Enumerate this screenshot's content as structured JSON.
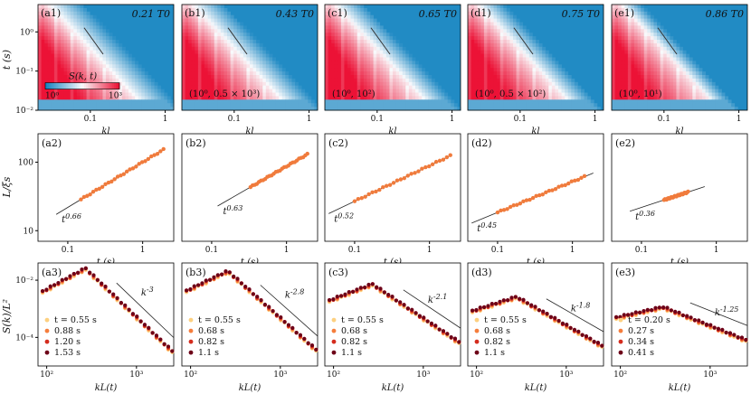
{
  "figure": {
    "ylabels": {
      "row1": "t (s)",
      "row2": "L/ξs",
      "row3": "S(k)/L²"
    }
  },
  "chart_data": [
    {
      "type": "heatmap",
      "panel": "a1",
      "label": "(a1)",
      "temperature": "0.21 T0",
      "xlabel": "kl",
      "ylabel": "t (s)",
      "xscale": "log",
      "yscale": "log",
      "xlim": [
        0.02,
        1.3
      ],
      "ylim": [
        0.01,
        5
      ],
      "xticks": [
        "0.1",
        "1"
      ],
      "yticks": [
        "10⁻²",
        "10⁻¹",
        "10⁰"
      ],
      "colorbar": {
        "label": "S(k, t)",
        "ticks": [
          "10⁰",
          "10³"
        ],
        "range": [
          1,
          1000
        ]
      },
      "range_note": "",
      "slope_guide": true
    },
    {
      "type": "heatmap",
      "panel": "b1",
      "label": "(b1)",
      "temperature": "0.43 T0",
      "xlabel": "kl",
      "xscale": "log",
      "yscale": "log",
      "xlim": [
        0.02,
        1.3
      ],
      "ylim": [
        0.01,
        5
      ],
      "xticks": [
        "0.1",
        "1"
      ],
      "range_note": "(10⁰, 0.5 × 10³)",
      "slope_guide": true
    },
    {
      "type": "heatmap",
      "panel": "c1",
      "label": "(c1)",
      "temperature": "0.65 T0",
      "xlabel": "kl",
      "xscale": "log",
      "yscale": "log",
      "xlim": [
        0.02,
        1.3
      ],
      "ylim": [
        0.01,
        5
      ],
      "xticks": [
        "0.1",
        "1"
      ],
      "range_note": "(10⁰, 10²)",
      "slope_guide": true
    },
    {
      "type": "heatmap",
      "panel": "d1",
      "label": "(d1)",
      "temperature": "0.75 T0",
      "xlabel": "kl",
      "xscale": "log",
      "yscale": "log",
      "xlim": [
        0.02,
        1.3
      ],
      "ylim": [
        0.01,
        5
      ],
      "xticks": [
        "0.1",
        "1"
      ],
      "range_note": "(10⁰, 0.5 × 10²)",
      "slope_guide": true
    },
    {
      "type": "heatmap",
      "panel": "e1",
      "label": "(e1)",
      "temperature": "0.86 T0",
      "xlabel": "kl",
      "xscale": "log",
      "yscale": "log",
      "xlim": [
        0.02,
        1.3
      ],
      "ylim": [
        0.01,
        5
      ],
      "xticks": [
        "0.1",
        "1"
      ],
      "range_note": "(10⁰, 10¹)",
      "slope_guide": true
    },
    {
      "type": "scatter",
      "panel": "a2",
      "label": "(a2)",
      "xlabel": "t (s)",
      "ylabel": "L/ξs",
      "xscale": "log",
      "yscale": "log",
      "xlim": [
        0.04,
        2.6
      ],
      "ylim": [
        7,
        260
      ],
      "xticks": [
        "0.1",
        "1"
      ],
      "yticks": [
        "10",
        "100"
      ],
      "data_t_range": [
        0.15,
        1.9
      ],
      "L_at_t1": 100,
      "exponent": 0.66,
      "fit_t_range": [
        0.07,
        1.9
      ],
      "fit_label": "t^0.66"
    },
    {
      "type": "scatter",
      "panel": "b2",
      "label": "(b2)",
      "xlabel": "t (s)",
      "xscale": "log",
      "yscale": "log",
      "xlim": [
        0.04,
        2.6
      ],
      "ylim": [
        7,
        260
      ],
      "xticks": [
        "0.1",
        "1"
      ],
      "data_t_range": [
        0.33,
        1.9
      ],
      "L_at_t1": 87,
      "exponent": 0.63,
      "fit_t_range": [
        0.12,
        1.9
      ],
      "fit_label": "t^0.63"
    },
    {
      "type": "scatter",
      "panel": "c2",
      "label": "(c2)",
      "xlabel": "t (s)",
      "xscale": "log",
      "yscale": "log",
      "xlim": [
        0.04,
        2.6
      ],
      "ylim": [
        7,
        260
      ],
      "xticks": [
        "0.1",
        "1"
      ],
      "data_t_range": [
        0.1,
        1.9
      ],
      "L_at_t1": 89,
      "exponent": 0.52,
      "fit_t_range": [
        0.045,
        1.9
      ],
      "fit_label": "t^0.52"
    },
    {
      "type": "scatter",
      "panel": "d2",
      "label": "(d2)",
      "xlabel": "t (s)",
      "xscale": "log",
      "yscale": "log",
      "xlim": [
        0.04,
        2.6
      ],
      "ylim": [
        7,
        260
      ],
      "xticks": [
        "0.1",
        "1"
      ],
      "data_t_range": [
        0.1,
        1.45
      ],
      "L_at_t1": 52,
      "exponent": 0.45,
      "fit_t_range": [
        0.045,
        1.9
      ],
      "fit_label": "t^0.45"
    },
    {
      "type": "scatter",
      "panel": "e2",
      "label": "(e2)",
      "xlabel": "t (s)",
      "xscale": "log",
      "yscale": "log",
      "xlim": [
        0.04,
        2.6
      ],
      "ylim": [
        7,
        260
      ],
      "xticks": [
        "0.1",
        "1"
      ],
      "data_t_range": [
        0.2,
        0.42
      ],
      "L_at_t1": 50,
      "exponent": 0.36,
      "fit_t_range": [
        0.07,
        0.7
      ],
      "fit_label": "t^0.36"
    },
    {
      "type": "scatter",
      "panel": "a3",
      "label": "(a3)",
      "xlabel": "kL(t)",
      "ylabel": "S(k)/L²",
      "xscale": "log",
      "yscale": "log",
      "xlim": [
        80,
        2600
      ],
      "ylim": [
        1e-05,
        0.04
      ],
      "xticks": [
        "10²",
        "10³"
      ],
      "yticks": [
        "10⁻⁴",
        "10⁻²"
      ],
      "peak": {
        "x": 270,
        "y": 0.025
      },
      "tail_exponent": 3,
      "low_slope": 1.7,
      "slope_label": "k^-3",
      "slope_line_x": [
        600,
        2600
      ],
      "series": [
        {
          "name": "t = 0.55 s",
          "color": "#fdd080"
        },
        {
          "name": "0.88 s",
          "color": "#f57d3c"
        },
        {
          "name": "1.20 s",
          "color": "#d42c1e"
        },
        {
          "name": "1.53 s",
          "color": "#6d0018"
        }
      ]
    },
    {
      "type": "scatter",
      "panel": "b3",
      "label": "(b3)",
      "xlabel": "kL(t)",
      "xscale": "log",
      "yscale": "log",
      "xlim": [
        80,
        2600
      ],
      "ylim": [
        1e-05,
        0.04
      ],
      "xticks": [
        "10²",
        "10³"
      ],
      "peak": {
        "x": 260,
        "y": 0.02
      },
      "tail_exponent": 2.8,
      "low_slope": 1.5,
      "slope_label": "k^-2.8",
      "slope_line_x": [
        600,
        2600
      ],
      "series": [
        {
          "name": "t = 0.55 s",
          "color": "#fdd080"
        },
        {
          "name": "0.68 s",
          "color": "#f57d3c"
        },
        {
          "name": "0.82 s",
          "color": "#d42c1e"
        },
        {
          "name": "1.1 s",
          "color": "#6d0018"
        }
      ]
    },
    {
      "type": "scatter",
      "panel": "c3",
      "label": "(c3)",
      "xlabel": "kL(t)",
      "xscale": "log",
      "yscale": "log",
      "xlim": [
        80,
        2600
      ],
      "ylim": [
        1e-05,
        0.04
      ],
      "xticks": [
        "10²",
        "10³"
      ],
      "peak": {
        "x": 270,
        "y": 0.007
      },
      "tail_exponent": 2.1,
      "low_slope": 1.2,
      "slope_label": "k^-2.1",
      "slope_line_x": [
        600,
        2600
      ],
      "series": [
        {
          "name": "t = 0.55 s",
          "color": "#fdd080"
        },
        {
          "name": "0.68 s",
          "color": "#f57d3c"
        },
        {
          "name": "0.82 s",
          "color": "#d42c1e"
        },
        {
          "name": "1.1 s",
          "color": "#6d0018"
        }
      ]
    },
    {
      "type": "scatter",
      "panel": "d3",
      "label": "(d3)",
      "xlabel": "kL(t)",
      "xscale": "log",
      "yscale": "log",
      "xlim": [
        80,
        2600
      ],
      "ylim": [
        1e-05,
        0.04
      ],
      "xticks": [
        "10²",
        "10³"
      ],
      "peak": {
        "x": 280,
        "y": 0.0025
      },
      "tail_exponent": 1.8,
      "low_slope": 1.0,
      "slope_label": "k^-1.8",
      "slope_line_x": [
        600,
        2600
      ],
      "series": [
        {
          "name": "t = 0.55 s",
          "color": "#fdd080"
        },
        {
          "name": "0.68 s",
          "color": "#f57d3c"
        },
        {
          "name": "0.82 s",
          "color": "#d42c1e"
        },
        {
          "name": "1.1 s",
          "color": "#6d0018"
        }
      ]
    },
    {
      "type": "scatter",
      "panel": "e3",
      "label": "(e3)",
      "xlabel": "kL(t)",
      "xscale": "log",
      "yscale": "log",
      "xlim": [
        80,
        2600
      ],
      "ylim": [
        1e-05,
        0.04
      ],
      "xticks": [
        "10²",
        "10³"
      ],
      "peak": {
        "x": 300,
        "y": 0.0011
      },
      "tail_exponent": 1.25,
      "low_slope": 0.7,
      "slope_label": "k^-1.25",
      "slope_line_x": [
        600,
        2600
      ],
      "series": [
        {
          "name": "t = 0.20 s",
          "color": "#fdd080"
        },
        {
          "name": "0.27 s",
          "color": "#f57d3c"
        },
        {
          "name": "0.34 s",
          "color": "#d42c1e"
        },
        {
          "name": "0.41 s",
          "color": "#6d0018"
        }
      ]
    }
  ]
}
